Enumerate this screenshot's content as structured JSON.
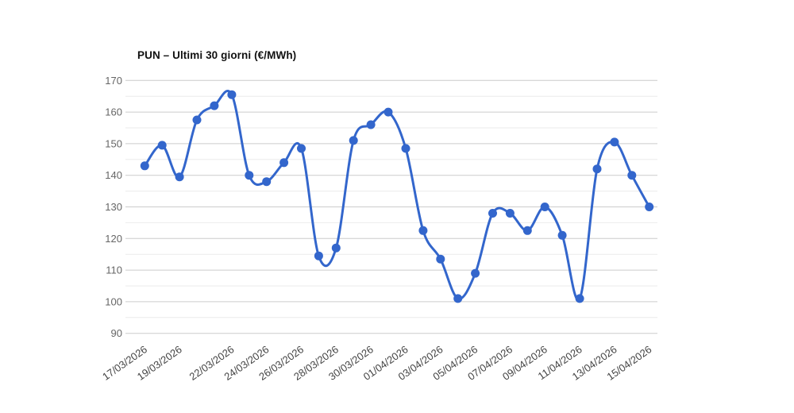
{
  "chart_data": {
    "type": "line",
    "title": "PUN – Ultimi 30 giorni (€/MWh)",
    "series_name": "PUN",
    "xlabel": "",
    "ylabel": "",
    "ylim": [
      90,
      170
    ],
    "y_ticks": [
      170,
      160,
      150,
      140,
      130,
      120,
      110,
      100,
      90
    ],
    "y_minor_ticks": [
      165,
      155,
      145,
      135,
      125,
      115,
      105,
      95
    ],
    "grid": "major+minor horizontal, no vertical gridlines",
    "legend": "none",
    "marker": "filled-circle",
    "line_style": "smooth-curve",
    "x": [
      "17/03/2026",
      "18/03/2026",
      "19/03/2026",
      "20/03/2026",
      "21/03/2026",
      "22/03/2026",
      "23/03/2026",
      "24/03/2026",
      "25/03/2026",
      "26/03/2026",
      "27/03/2026",
      "28/03/2026",
      "29/03/2026",
      "30/03/2026",
      "31/03/2026",
      "01/04/2026",
      "02/04/2026",
      "03/04/2026",
      "04/04/2026",
      "05/04/2026",
      "06/04/2026",
      "07/04/2026",
      "08/04/2026",
      "09/04/2026",
      "10/04/2026",
      "11/04/2026",
      "12/04/2026",
      "13/04/2026",
      "14/04/2026",
      "15/04/2026"
    ],
    "values": [
      143,
      149.5,
      139.5,
      157.5,
      162,
      165.5,
      140,
      138,
      144,
      148.5,
      114.5,
      117,
      151,
      156,
      160,
      148.5,
      122.5,
      113.5,
      101,
      109,
      128,
      128,
      122.5,
      130,
      121,
      101,
      142,
      150.5,
      140,
      130
    ],
    "x_tick_indices": [
      0,
      2,
      5,
      7,
      9,
      11,
      13,
      15,
      17,
      19,
      21,
      23,
      25,
      27,
      29
    ],
    "x_tick_labels": [
      "17/03/2026",
      "19/03/2026",
      "22/03/2026",
      "24/03/2026",
      "26/03/2026",
      "28/03/2026",
      "30/03/2026",
      "01/04/2026",
      "03/04/2026",
      "05/04/2026",
      "07/04/2026",
      "09/04/2026",
      "11/04/2026",
      "13/04/2026",
      "15/04/2026"
    ],
    "colors": {
      "line": "#3366cc",
      "marker": "#3366cc",
      "grid_major": "#cccccc",
      "grid_minor": "#ebebeb",
      "y_tick_text": "#666666",
      "x_tick_text": "#444444",
      "title_text": "#111111",
      "background": "#ffffff"
    }
  }
}
